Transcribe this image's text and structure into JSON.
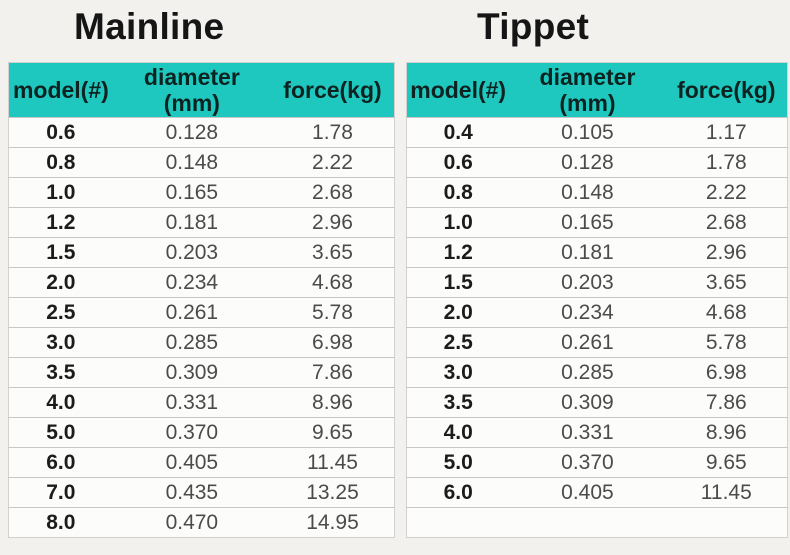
{
  "colors": {
    "header_bg": "#1ec8be",
    "header_text": "#0d2321",
    "page_background": "#f2f1ee",
    "cell_text": "#4b4b4b",
    "model_column_text": "#1c1c1c"
  },
  "chart_data": [
    {
      "type": "table",
      "title": "Mainline",
      "columns": [
        "model(#)",
        "diameter (mm)",
        "force(kg)"
      ],
      "header_lines": [
        [
          "model(#)"
        ],
        [
          "diameter",
          "(mm)"
        ],
        [
          "force(kg)"
        ]
      ],
      "rows": [
        [
          "0.6",
          "0.128",
          "1.78"
        ],
        [
          "0.8",
          "0.148",
          "2.22"
        ],
        [
          "1.0",
          "0.165",
          "2.68"
        ],
        [
          "1.2",
          "0.181",
          "2.96"
        ],
        [
          "1.5",
          "0.203",
          "3.65"
        ],
        [
          "2.0",
          "0.234",
          "4.68"
        ],
        [
          "2.5",
          "0.261",
          "5.78"
        ],
        [
          "3.0",
          "0.285",
          "6.98"
        ],
        [
          "3.5",
          "0.309",
          "7.86"
        ],
        [
          "4.0",
          "0.331",
          "8.96"
        ],
        [
          "5.0",
          "0.370",
          "9.65"
        ],
        [
          "6.0",
          "0.405",
          "11.45"
        ],
        [
          "7.0",
          "0.435",
          "13.25"
        ],
        [
          "8.0",
          "0.470",
          "14.95"
        ]
      ],
      "empty_trailing_rows": 0
    },
    {
      "type": "table",
      "title": "Tippet",
      "columns": [
        "model(#)",
        "diameter (mm)",
        "force(kg)"
      ],
      "header_lines": [
        [
          "model(#)"
        ],
        [
          "diameter",
          "(mm)"
        ],
        [
          "force(kg)"
        ]
      ],
      "rows": [
        [
          "0.4",
          "0.105",
          "1.17"
        ],
        [
          "0.6",
          "0.128",
          "1.78"
        ],
        [
          "0.8",
          "0.148",
          "2.22"
        ],
        [
          "1.0",
          "0.165",
          "2.68"
        ],
        [
          "1.2",
          "0.181",
          "2.96"
        ],
        [
          "1.5",
          "0.203",
          "3.65"
        ],
        [
          "2.0",
          "0.234",
          "4.68"
        ],
        [
          "2.5",
          "0.261",
          "5.78"
        ],
        [
          "3.0",
          "0.285",
          "6.98"
        ],
        [
          "3.5",
          "0.309",
          "7.86"
        ],
        [
          "4.0",
          "0.331",
          "8.96"
        ],
        [
          "5.0",
          "0.370",
          "9.65"
        ],
        [
          "6.0",
          "0.405",
          "11.45"
        ]
      ],
      "empty_trailing_rows": 1
    }
  ]
}
